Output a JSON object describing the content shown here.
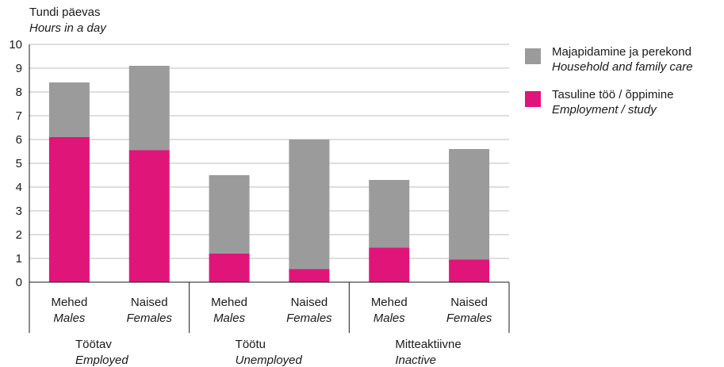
{
  "chart_data": {
    "type": "bar",
    "stacked": true,
    "ylabel": "Tundi päevas",
    "ylabel_en": "Hours in a day",
    "ylim": [
      0,
      10
    ],
    "yticks": [
      "0",
      "1",
      "2",
      "3",
      "4",
      "5",
      "6",
      "7",
      "8",
      "9",
      "10"
    ],
    "grid": true,
    "legend_position": "right",
    "categories": [
      {
        "label": "Mehed",
        "label_en": "Males"
      },
      {
        "label": "Naised",
        "label_en": "Females"
      },
      {
        "label": "Mehed",
        "label_en": "Males"
      },
      {
        "label": "Naised",
        "label_en": "Females"
      },
      {
        "label": "Mehed",
        "label_en": "Males"
      },
      {
        "label": "Naised",
        "label_en": "Females"
      }
    ],
    "groups": [
      {
        "label": "Töötav",
        "label_en": "Employed"
      },
      {
        "label": "Töötu",
        "label_en": "Unemployed"
      },
      {
        "label": "Mitteaktiivne",
        "label_en": "Inactive"
      }
    ],
    "series": [
      {
        "name": "Tasuline töö / õppimine",
        "name_en": "Employment / study",
        "color": "#e0157a",
        "values": [
          6.1,
          5.55,
          1.2,
          0.55,
          1.45,
          0.95
        ]
      },
      {
        "name": "Majapidamine ja perekond",
        "name_en": "Household and family care",
        "color": "#9b9b9b",
        "values": [
          2.3,
          3.55,
          3.3,
          5.45,
          2.85,
          4.65
        ]
      }
    ]
  }
}
